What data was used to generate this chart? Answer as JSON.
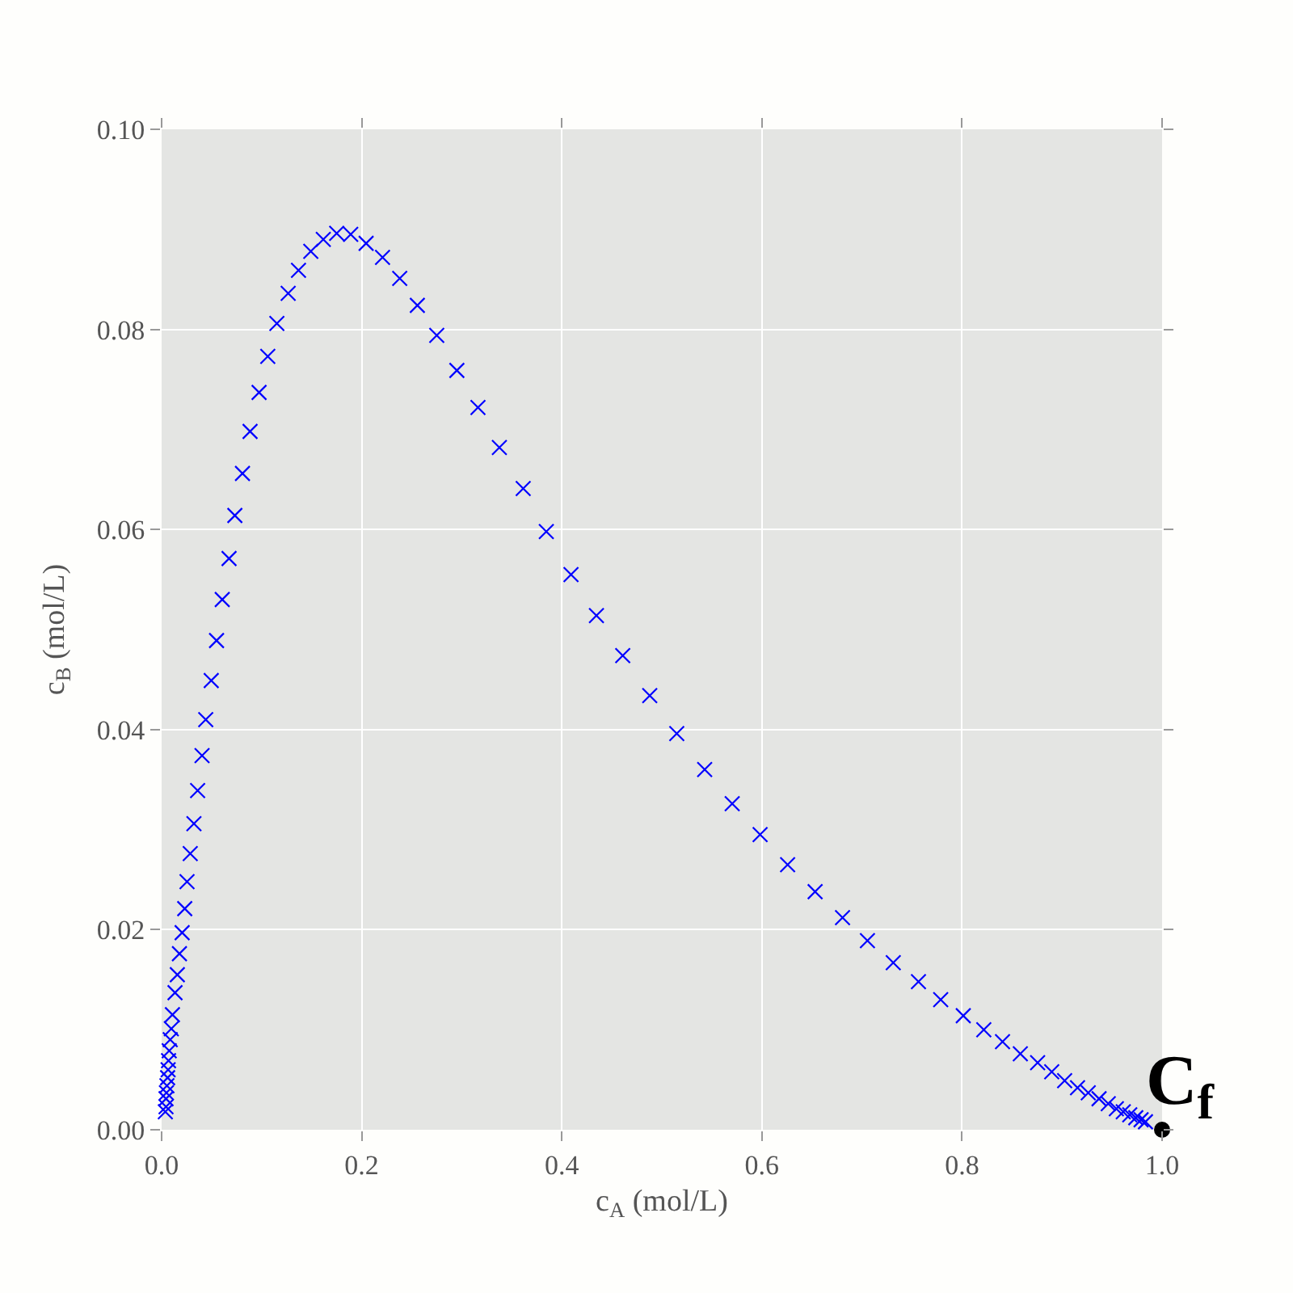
{
  "chart_data": {
    "type": "scatter",
    "xlabel": "c$_{A}$ (mol/L)",
    "ylabel": "c$_{B}$ (mol/L)",
    "xlim": [
      0,
      1
    ],
    "ylim": [
      0,
      0.1
    ],
    "xticks": [
      {
        "value": 0,
        "label": "0.0"
      },
      0.2,
      0.4,
      0.6,
      0.8,
      {
        "value": 1,
        "label": "1.0"
      }
    ],
    "yticks": [
      {
        "value": 0,
        "label": "0.00"
      },
      0.02,
      0.04,
      0.06,
      0.08,
      {
        "value": 0.1,
        "label": "0.10"
      }
    ],
    "grid": true,
    "series": [
      {
        "color": "#0000ff",
        "marker": "cross",
        "x": [
          0.0037,
          0.0044,
          0.0044,
          0.0048,
          0.0053,
          0.006,
          0.0065,
          0.0069,
          0.0076,
          0.0086,
          0.0097,
          0.0108,
          0.0134,
          0.0157,
          0.0178,
          0.0205,
          0.0231,
          0.0254,
          0.0286,
          0.0323,
          0.036,
          0.0404,
          0.0441,
          0.0496,
          0.0549,
          0.0606,
          0.0674,
          0.0732,
          0.0808,
          0.0884,
          0.0974,
          0.1061,
          0.1152,
          0.1265,
          0.1368,
          0.1491,
          0.1616,
          0.175,
          0.189,
          0.2044,
          0.2208,
          0.238,
          0.2556,
          0.275,
          0.2951,
          0.3162,
          0.3376,
          0.3614,
          0.3845,
          0.4092,
          0.4346,
          0.4609,
          0.4879,
          0.5149,
          0.5428,
          0.5703,
          0.5982,
          0.6257,
          0.6532,
          0.6806,
          0.7055,
          0.7313,
          0.7565,
          0.7787,
          0.8013,
          0.8218,
          0.8405,
          0.8583,
          0.8756,
          0.8897,
          0.9026,
          0.9155,
          0.9262,
          0.937,
          0.9462,
          0.9543,
          0.9612,
          0.9677,
          0.9737,
          0.979,
          0.9834
        ],
        "values": [
          0.0018,
          0.0023,
          0.0031,
          0.0037,
          0.0044,
          0.0052,
          0.006,
          0.0069,
          0.0079,
          0.009,
          0.0101,
          0.0115,
          0.0137,
          0.0155,
          0.0176,
          0.0197,
          0.0221,
          0.0248,
          0.0276,
          0.0306,
          0.0339,
          0.0374,
          0.041,
          0.0449,
          0.0489,
          0.053,
          0.0571,
          0.0614,
          0.0656,
          0.0698,
          0.0737,
          0.0773,
          0.0806,
          0.0836,
          0.0859,
          0.0878,
          0.089,
          0.0896,
          0.0895,
          0.0886,
          0.0872,
          0.0851,
          0.0824,
          0.0794,
          0.0759,
          0.0722,
          0.0682,
          0.0641,
          0.0598,
          0.0555,
          0.0514,
          0.0474,
          0.0434,
          0.0396,
          0.036,
          0.0326,
          0.0295,
          0.0265,
          0.0238,
          0.0212,
          0.0189,
          0.0167,
          0.0148,
          0.013,
          0.0114,
          0.01,
          0.0088,
          0.0076,
          0.0067,
          0.0058,
          0.0049,
          0.0042,
          0.0037,
          0.0031,
          0.0026,
          0.0021,
          0.0018,
          0.0015,
          0.0012,
          0.001,
          0.0008
        ]
      },
      {
        "color": "#000000",
        "marker": "circle",
        "x": [
          1.0
        ],
        "values": [
          0.0
        ]
      }
    ],
    "annotations": [
      {
        "text": "C$_{f}$",
        "x": 1.0,
        "y": 0.0
      }
    ]
  }
}
